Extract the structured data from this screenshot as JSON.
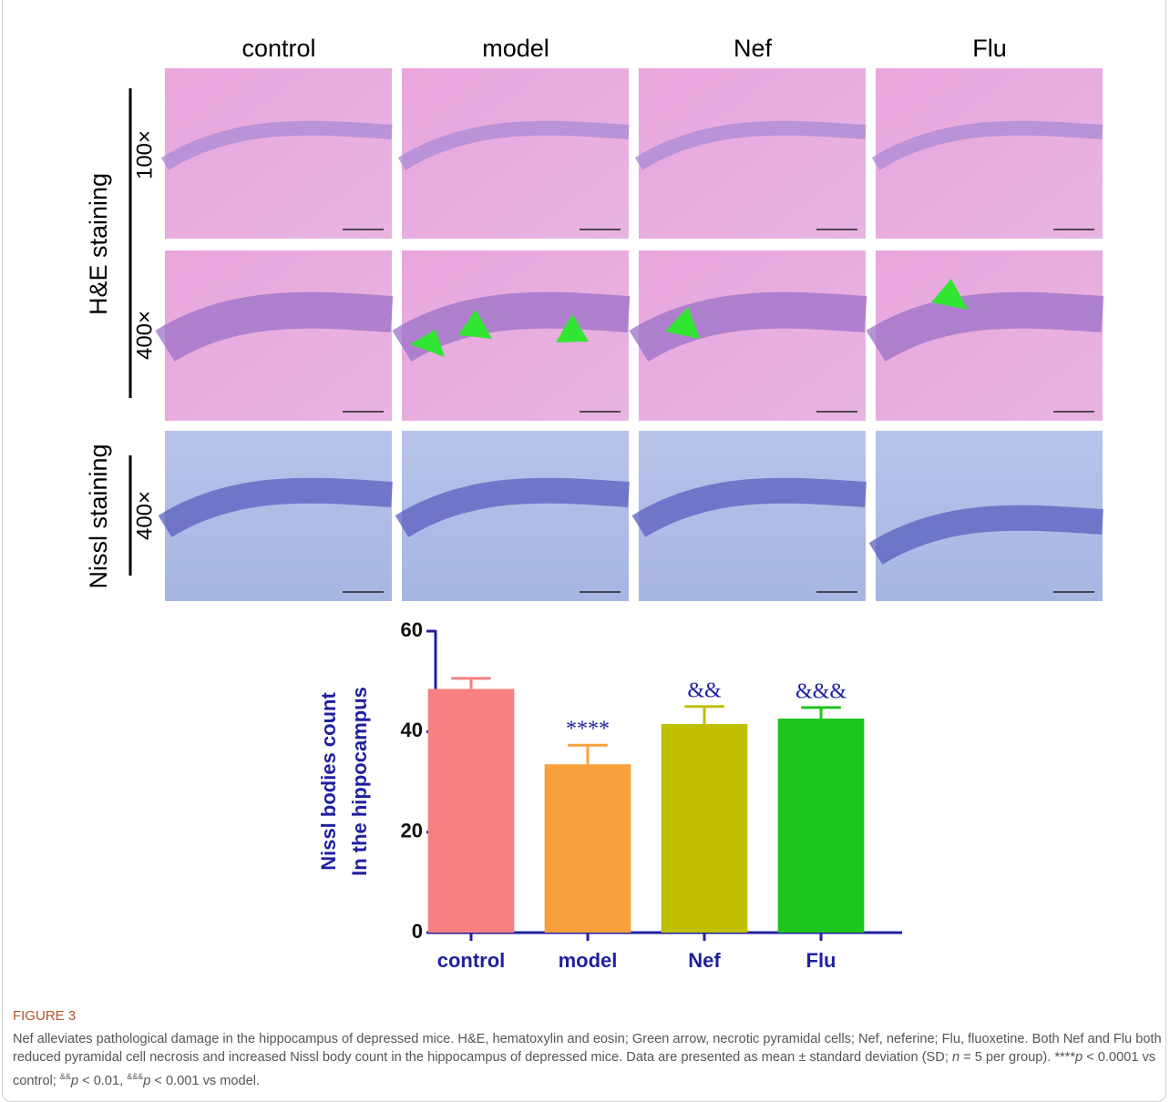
{
  "panel": {
    "column_labels": [
      "control",
      "model",
      "Nef",
      "Flu"
    ],
    "row_labels": {
      "he": "H&E staining",
      "he_low": "100×",
      "he_high": "400×",
      "nissl": "Nissl staining",
      "nissl_high": "400×"
    }
  },
  "chart_data": {
    "type": "bar",
    "y_label": [
      "Nissl bodies count",
      "In the hippocampus"
    ],
    "categories": [
      "control",
      "model",
      "Nef",
      "Flu"
    ],
    "values": [
      48.5,
      33.5,
      41.5,
      42.6
    ],
    "errors": [
      2.1,
      3.8,
      3.5,
      2.2
    ],
    "colors": [
      "#f88080",
      "#f8a03c",
      "#bfbf00",
      "#1ec41e"
    ],
    "annotations": [
      null,
      "****",
      "&&",
      "&&&"
    ],
    "ylim": [
      0,
      60
    ],
    "yticks": [
      0,
      20,
      40,
      60
    ]
  },
  "caption": {
    "label": "FIGURE 3",
    "segments": [
      {
        "text": "Nef alleviates pathological damage in the hippocampus of depressed mice. H&E, hematoxylin and eosin; Green arrow, necrotic pyramidal cells; Nef, neferine; Flu, fluoxetine. Both Nef and Flu both reduced pyramidal cell necrosis and increased Nissl body count in the hippocampus of depressed mice. Data are presented as mean ± standard deviation (SD; ",
        "style": "normal"
      },
      {
        "text": "n",
        "style": "italic"
      },
      {
        "text": " = 5 per group). ****",
        "style": "normal"
      },
      {
        "text": "p",
        "style": "italic"
      },
      {
        "text": " < 0.0001 vs control; ",
        "style": "normal"
      },
      {
        "text": "&&",
        "style": "sup"
      },
      {
        "text": "p",
        "style": "italic"
      },
      {
        "text": " < 0.01, ",
        "style": "normal"
      },
      {
        "text": "&&&",
        "style": "sup"
      },
      {
        "text": "p",
        "style": "italic"
      },
      {
        "text": " < 0.001 vs model.",
        "style": "normal"
      }
    ]
  }
}
